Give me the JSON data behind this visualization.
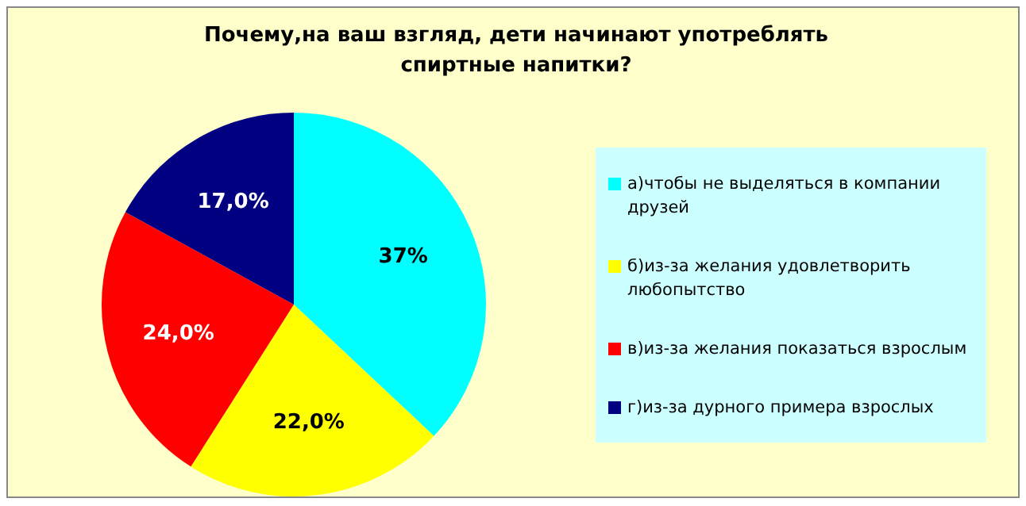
{
  "chart_data": {
    "type": "pie",
    "title": "Почему,на ваш взгляд, дети начинают употреблять спиртные напитки?",
    "categories": [
      "а)чтобы не выделяться в компании друзей",
      "б)из-за желания удовлетворить любопытство",
      "в)из-за желания показаться взрослым",
      "г)из-за дурного примера взрослых"
    ],
    "values": [
      37,
      22,
      24,
      17
    ],
    "value_labels": [
      "37%",
      "22,0%",
      "24,0%",
      "17,0%"
    ],
    "colors": [
      "#00ffff",
      "#ffff00",
      "#ff0000",
      "#000080"
    ],
    "legend": "right"
  }
}
